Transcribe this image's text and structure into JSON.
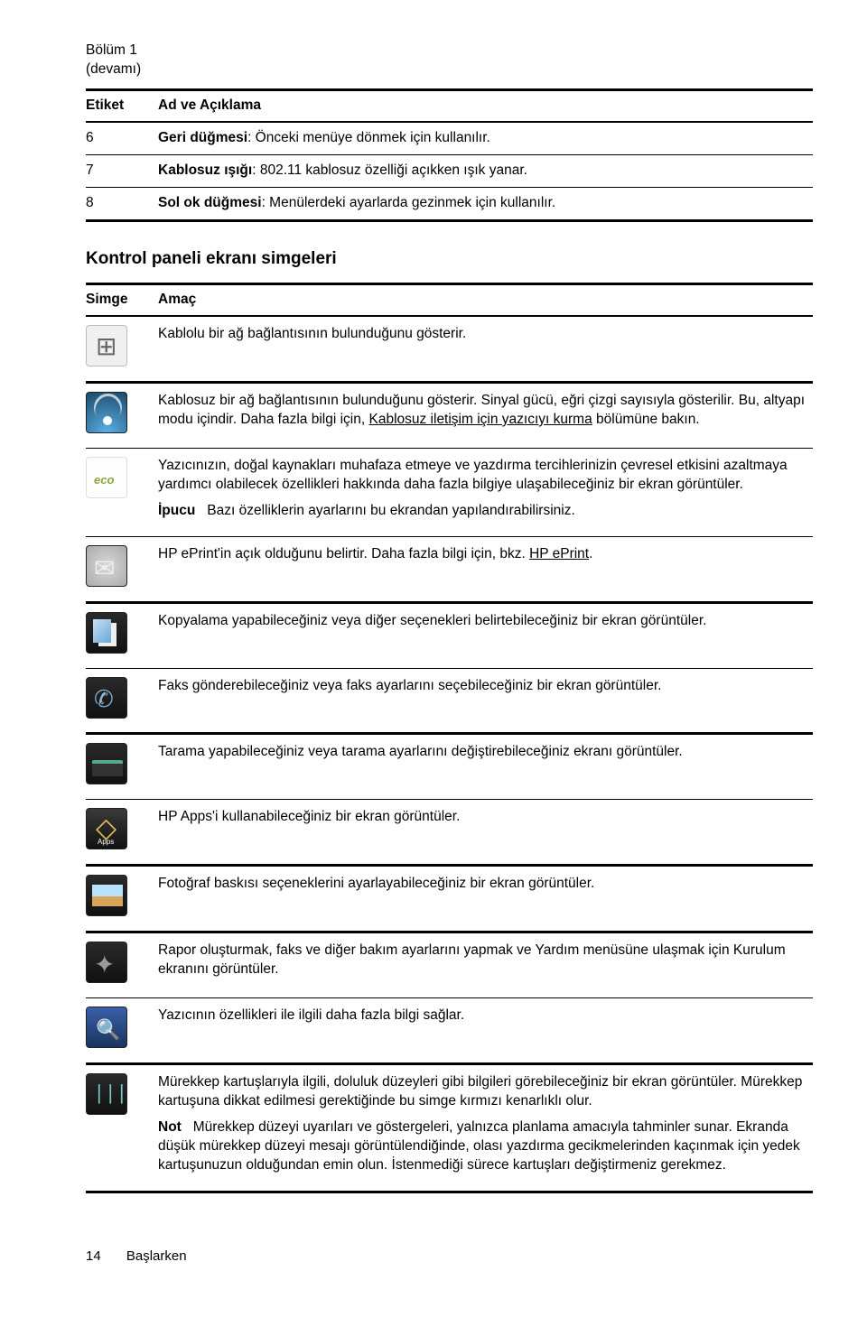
{
  "section_top": {
    "chapter": "Bölüm 1",
    "continued": "(devamı)",
    "col_etiket": "Etiket",
    "col_desc": "Ad ve Açıklama",
    "rows": [
      {
        "num": "6",
        "bold": "Geri düğmesi",
        "rest": ": Önceki menüye dönmek için kullanılır."
      },
      {
        "num": "7",
        "bold": "Kablosuz ışığı",
        "rest": ": 802.11 kablosuz özelliği açıkken ışık yanar."
      },
      {
        "num": "8",
        "bold": "Sol ok düğmesi",
        "rest": ": Menülerdeki ayarlarda gezinmek için kullanılır."
      }
    ]
  },
  "section_icons": {
    "heading": "Kontrol paneli ekranı simgeleri",
    "col_simge": "Simge",
    "col_amac": "Amaç",
    "wired": "Kablolu bir ağ bağlantısının bulunduğunu gösterir.",
    "wireless_p1a": "Kablosuz bir ağ bağlantısının bulunduğunu gösterir. Sinyal gücü, eğri çizgi sayısıyla gösterilir. Bu, altyapı modu içindir. Daha fazla bilgi için, ",
    "wireless_link": "Kablosuz iletişim için yazıcıyı kurma",
    "wireless_p1b": " bölümüne bakın.",
    "eco_p1": "Yazıcınızın, doğal kaynakları muhafaza etmeye ve yazdırma tercihlerinizin çevresel etkisini azaltmaya yardımcı olabilecek özellikleri hakkında daha fazla bilgiye ulaşabileceğiniz bir ekran görüntüler.",
    "eco_tip_bold": "İpucu",
    "eco_tip_rest": "Bazı özelliklerin ayarlarını bu ekrandan yapılandırabilirsiniz.",
    "eprint_a": "HP ePrint'in açık olduğunu belirtir. Daha fazla bilgi için, bkz. ",
    "eprint_link": "HP ePrint",
    "eprint_b": ".",
    "copy": "Kopyalama yapabileceğiniz veya diğer seçenekleri belirtebileceğiniz bir ekran görüntüler.",
    "fax": "Faks gönderebileceğiniz veya faks ayarlarını seçebileceğiniz bir ekran görüntüler.",
    "scan": "Tarama yapabileceğiniz veya tarama ayarlarını değiştirebileceğiniz ekranı görüntüler.",
    "apps": "HP Apps'i kullanabileceğiniz bir ekran görüntüler.",
    "photo": "Fotoğraf baskısı seçeneklerini ayarlayabileceğiniz bir ekran görüntüler.",
    "setup": "Rapor oluşturmak, faks ve diğer bakım ayarlarını yapmak ve Yardım menüsüne ulaşmak için Kurulum ekranını görüntüler.",
    "help": "Yazıcının özellikleri ile ilgili daha fazla bilgi sağlar.",
    "ink_p1": "Mürekkep kartuşlarıyla ilgili, doluluk düzeyleri gibi bilgileri görebileceğiniz bir ekran görüntüler. Mürekkep kartuşuna dikkat edilmesi gerektiğinde bu simge kırmızı kenarlıklı olur.",
    "ink_note_bold": "Not",
    "ink_note_rest": "Mürekkep düzeyi uyarıları ve göstergeleri, yalnızca planlama amacıyla tahminler sunar. Ekranda düşük mürekkep düzeyi mesajı görüntülendiğinde, olası yazdırma gecikmelerinden kaçınmak için yedek kartuşunuzun olduğundan emin olun. İstenmediği sürece kartuşları değiştirmeniz gerekmez."
  },
  "footer": {
    "page": "14",
    "title": "Başlarken"
  }
}
